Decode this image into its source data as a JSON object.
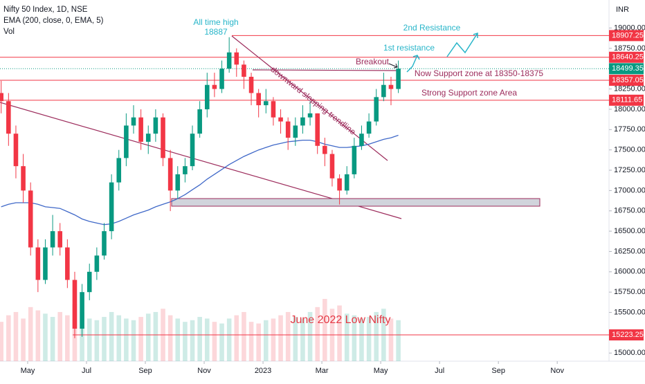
{
  "chart_data": {
    "type": "candlestick",
    "title": "Nifty 50 Index, 1D, NSE",
    "indicator_label": "EMA (200, close, 0, EMA, 5)",
    "volume_label": "Vol",
    "currency": "INR",
    "x": [
      3.1,
      3.35,
      3.6,
      3.85,
      4.1,
      4.35,
      4.6,
      4.85,
      5.1,
      5.35,
      5.6,
      5.85,
      6.1,
      6.35,
      6.6,
      6.85,
      7.1,
      7.35,
      7.6,
      7.85,
      8.1,
      8.35,
      8.6,
      8.85,
      9.1,
      9.35,
      9.6,
      9.85,
      10.1,
      10.35,
      10.6,
      10.85,
      11.1,
      11.35,
      11.6,
      11.85,
      12.1,
      12.35,
      12.6,
      12.85,
      13.1,
      13.35,
      13.6,
      13.85,
      14.1,
      14.35,
      14.6,
      14.85,
      15.1,
      15.35,
      15.6,
      15.85,
      16.1,
      16.35,
      16.6
    ],
    "open": [
      18200,
      18100,
      17700,
      17300,
      17000,
      16300,
      15900,
      16300,
      16500,
      16300,
      15900,
      15300,
      15750,
      16000,
      16200,
      16500,
      17100,
      17400,
      17800,
      17900,
      17600,
      17700,
      17900,
      17400,
      17000,
      17200,
      17300,
      17700,
      18000,
      18300,
      18250,
      18500,
      18700,
      18550,
      18400,
      18200,
      18050,
      18100,
      17900,
      17850,
      17650,
      17800,
      17900,
      17950,
      17550,
      17450,
      17150,
      17000,
      17200,
      17550,
      17700,
      17850,
      18150,
      18300,
      18250
    ],
    "high": [
      18350,
      18200,
      17800,
      17450,
      17100,
      16400,
      16400,
      16700,
      16600,
      16400,
      16000,
      15850,
      16100,
      16300,
      16600,
      17200,
      17500,
      17950,
      18050,
      18000,
      17800,
      18000,
      17950,
      17500,
      17300,
      17400,
      17800,
      18100,
      18450,
      18450,
      18600,
      18887,
      18750,
      18600,
      18450,
      18250,
      18250,
      18150,
      18000,
      17900,
      17900,
      18050,
      18100,
      17950,
      17650,
      17500,
      17200,
      17300,
      17650,
      17800,
      17950,
      18250,
      18450,
      18400,
      18600
    ],
    "low": [
      17950,
      17550,
      17150,
      16850,
      16200,
      15750,
      15850,
      16200,
      16200,
      15800,
      15183,
      15200,
      15650,
      15900,
      16150,
      16400,
      17000,
      17300,
      17700,
      17500,
      17450,
      17600,
      17300,
      16747,
      16900,
      17100,
      17250,
      17650,
      17900,
      18150,
      18200,
      18450,
      18400,
      18250,
      18050,
      17900,
      17950,
      17800,
      17700,
      17500,
      17550,
      17700,
      17800,
      17450,
      17300,
      17050,
      16828,
      16950,
      17150,
      17500,
      17650,
      17800,
      18100,
      18050,
      18200
    ],
    "close": [
      18100,
      17700,
      17300,
      17000,
      16300,
      15900,
      16300,
      16500,
      16300,
      15900,
      15300,
      15750,
      16000,
      16200,
      16500,
      17100,
      17400,
      17800,
      17900,
      17600,
      17700,
      17900,
      17400,
      17000,
      17200,
      17300,
      17700,
      18000,
      18300,
      18250,
      18500,
      18700,
      18550,
      18400,
      18200,
      18050,
      18100,
      17900,
      17850,
      17650,
      17800,
      17900,
      17950,
      17550,
      17450,
      17150,
      17000,
      17200,
      17550,
      17700,
      17850,
      18150,
      18300,
      18250,
      18500
    ],
    "volume": [
      240000000,
      280000000,
      300000000,
      260000000,
      330000000,
      310000000,
      290000000,
      270000000,
      300000000,
      280000000,
      350000000,
      300000000,
      260000000,
      250000000,
      270000000,
      300000000,
      280000000,
      260000000,
      250000000,
      270000000,
      290000000,
      300000000,
      320000000,
      280000000,
      260000000,
      240000000,
      250000000,
      270000000,
      260000000,
      240000000,
      230000000,
      260000000,
      280000000,
      300000000,
      240000000,
      230000000,
      250000000,
      260000000,
      280000000,
      300000000,
      270000000,
      260000000,
      300000000,
      330000000,
      380000000,
      320000000,
      340000000,
      290000000,
      280000000,
      260000000,
      270000000,
      300000000,
      320000000,
      260000000,
      250000000
    ],
    "ema": {
      "color": "#3f68c8",
      "values": [
        16800,
        16830,
        16850,
        16850,
        16850,
        16830,
        16800,
        16790,
        16780,
        16740,
        16700,
        16650,
        16620,
        16600,
        16580,
        16590,
        16620,
        16660,
        16700,
        16730,
        16760,
        16800,
        16830,
        16860,
        16900,
        16950,
        17010,
        17070,
        17140,
        17200,
        17260,
        17320,
        17370,
        17420,
        17460,
        17500,
        17530,
        17560,
        17580,
        17600,
        17610,
        17620,
        17620,
        17600,
        17570,
        17550,
        17530,
        17530,
        17540,
        17550,
        17570,
        17600,
        17630,
        17650,
        17680
      ]
    },
    "up_color": "#089981",
    "down_color": "#f23645",
    "levels": [
      18907.25,
      18640.25,
      18357.05,
      18111.65,
      15223.25
    ],
    "level_color": "#f23645",
    "last_price": 18499.35,
    "annotations": [
      "All time high",
      "18887",
      "2nd Resistance",
      "1st resistance",
      "Breakout",
      "Now Support zone at 18350-18375",
      "Strong Support zone Area",
      "downward slopping trendline",
      "June 2022 Low Nifty"
    ],
    "xlim": [
      3.06,
      23.76
    ],
    "xticks": [
      {
        "value": 4,
        "label": "May"
      },
      {
        "value": 6,
        "label": "Jul"
      },
      {
        "value": 8,
        "label": "Sep"
      },
      {
        "value": 10,
        "label": "Nov"
      },
      {
        "value": 12,
        "label": "2023"
      },
      {
        "value": 14,
        "label": "Mar"
      },
      {
        "value": 16,
        "label": "May"
      },
      {
        "value": 18,
        "label": "Jul"
      },
      {
        "value": 20,
        "label": "Sep"
      },
      {
        "value": 22,
        "label": "Nov"
      }
    ],
    "ylim": [
      14900,
      19345
    ],
    "yticks": [
      {
        "value": 19000,
        "label": "19000.00"
      },
      {
        "value": 18750,
        "label": "18750.00"
      },
      {
        "value": 18250,
        "label": "18250.00"
      },
      {
        "value": 18000,
        "label": "18000.00"
      },
      {
        "value": 17750,
        "label": "17750.00"
      },
      {
        "value": 17500,
        "label": "17500.00"
      },
      {
        "value": 17250,
        "label": "17250.00"
      },
      {
        "value": 17000,
        "label": "17000.00"
      },
      {
        "value": 16750,
        "label": "16750.00"
      },
      {
        "value": 16500,
        "label": "16500.00"
      },
      {
        "value": 16250,
        "label": "16250.00"
      },
      {
        "value": 16000,
        "label": "16000.00"
      },
      {
        "value": 15750,
        "label": "15750.00"
      },
      {
        "value": 15500,
        "label": "15500.00"
      },
      {
        "value": 15000,
        "label": "15000.00"
      }
    ]
  }
}
